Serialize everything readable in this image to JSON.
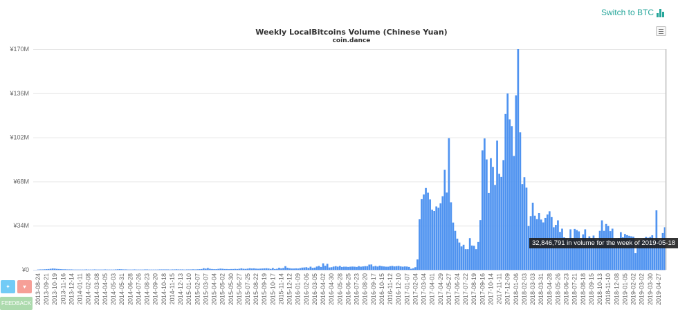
{
  "header": {
    "switch_label": "Switch to BTC",
    "switch_icon": "bar-chart-icon",
    "menu_icon": "hamburger-menu-icon"
  },
  "footer_buttons": {
    "feedback": "FEEDBACK",
    "tweet_icon": "twitter-icon",
    "heart_icon": "heart-icon"
  },
  "tooltip": {
    "text": "32,846,791 in volume for the week of 2019-05-18"
  },
  "colors": {
    "bar": "#4f93f0",
    "accent": "#26a69a",
    "feedback": "#9ed49f",
    "twitter": "#5bc3f5",
    "heart": "#f58f86"
  },
  "chart_data": {
    "type": "bar",
    "title": "Weekly LocalBitcoins Volume (Chinese Yuan)",
    "subtitle": "coin.dance",
    "xlabel": "",
    "ylabel": "",
    "ylim": [
      0,
      170
    ],
    "y_unit": "million CNY",
    "yticks": [
      "¥0",
      "¥34M",
      "¥68M",
      "¥102M",
      "¥136M",
      "¥170M"
    ],
    "grid": true,
    "first_week": "2013-08-24",
    "last_week": "2019-05-18",
    "week_step_days": 7,
    "xtick_labels": [
      "2013-08-24",
      "2013-09-21",
      "2013-10-19",
      "2013-11-16",
      "2013-12-14",
      "2014-01-11",
      "2014-02-08",
      "2014-03-08",
      "2014-04-05",
      "2014-05-03",
      "2014-05-31",
      "2014-06-28",
      "2014-07-26",
      "2014-08-23",
      "2014-09-20",
      "2014-10-18",
      "2014-11-15",
      "2014-12-13",
      "2015-01-10",
      "2015-02-07",
      "2015-03-07",
      "2015-04-04",
      "2015-05-02",
      "2015-05-30",
      "2015-06-27",
      "2015-07-25",
      "2015-08-22",
      "2015-09-19",
      "2015-10-17",
      "2015-11-14",
      "2015-12-12",
      "2016-01-09",
      "2016-02-06",
      "2016-03-05",
      "2016-04-02",
      "2016-04-30",
      "2016-05-28",
      "2016-06-25",
      "2016-07-23",
      "2016-08-20",
      "2016-09-17",
      "2016-10-15",
      "2016-11-12",
      "2016-12-10",
      "2017-01-07",
      "2017-02-04",
      "2017-03-04",
      "2017-04-01",
      "2017-04-29",
      "2017-05-27",
      "2017-06-24",
      "2017-07-22",
      "2017-08-19",
      "2017-09-16",
      "2017-10-14",
      "2017-11-11",
      "2017-12-09",
      "2018-01-06",
      "2018-02-03",
      "2018-03-03",
      "2018-03-31",
      "2018-04-28",
      "2018-05-26",
      "2018-06-23",
      "2018-07-21",
      "2018-08-18",
      "2018-09-15",
      "2018-10-13",
      "2018-11-10",
      "2018-12-08",
      "2019-01-05",
      "2019-02-02",
      "2019-03-02",
      "2019-03-30",
      "2019-04-27"
    ],
    "values": [
      0.2,
      0.3,
      0.3,
      0.4,
      0.5,
      0.6,
      0.8,
      1.0,
      0.9,
      0.7,
      0.6,
      0.5,
      0.4,
      0.4,
      0.3,
      0.3,
      0.3,
      0.2,
      0.2,
      0.2,
      0.2,
      0.2,
      0.2,
      0.3,
      0.2,
      0.2,
      0.2,
      0.3,
      0.2,
      0.2,
      0.2,
      0.2,
      0.3,
      0.2,
      0.2,
      0.2,
      0.2,
      0.3,
      0.4,
      0.5,
      0.4,
      0.3,
      0.3,
      0.2,
      0.2,
      0.2,
      0.3,
      0.2,
      0.2,
      0.2,
      0.2,
      0.3,
      0.3,
      0.2,
      0.2,
      0.2,
      0.2,
      0.2,
      0.3,
      0.3,
      0.3,
      0.3,
      0.3,
      0.2,
      0.3,
      0.3,
      0.4,
      0.3,
      0.3,
      0.3,
      0.2,
      0.3,
      0.3,
      0.3,
      0.4,
      0.3,
      0.4,
      0.5,
      0.6,
      1.2,
      0.9,
      1.4,
      0.8,
      0.6,
      0.5,
      0.5,
      0.7,
      0.9,
      0.8,
      0.6,
      0.6,
      0.5,
      0.6,
      0.6,
      0.7,
      0.6,
      0.8,
      1.1,
      0.8,
      0.7,
      0.9,
      1.2,
      1.0,
      1.1,
      0.9,
      0.8,
      0.9,
      1.0,
      1.1,
      1.2,
      1.0,
      0.7,
      1.4,
      0.6,
      0.8,
      1.6,
      1.1,
      1.4,
      2.8,
      1.6,
      1.2,
      1.0,
      1.0,
      1.1,
      1.0,
      1.3,
      1.7,
      1.8,
      2.0,
      1.5,
      2.4,
      1.5,
      1.7,
      2.5,
      3.0,
      2.2,
      5.0,
      3.1,
      4.6,
      1.8,
      2.0,
      2.5,
      2.8,
      2.4,
      3.0,
      2.2,
      2.4,
      2.4,
      2.2,
      2.4,
      2.5,
      2.4,
      2.2,
      2.8,
      2.4,
      2.6,
      2.8,
      2.8,
      4.0,
      4.1,
      2.6,
      3.0,
      2.5,
      3.2,
      2.8,
      2.6,
      2.4,
      2.4,
      2.8,
      3.0,
      2.6,
      2.8,
      3.0,
      2.6,
      2.4,
      2.6,
      2.5,
      2.2,
      0.8,
      1.2,
      2.0,
      8.0,
      38.9,
      54.4,
      58.0,
      63.0,
      59.4,
      54.2,
      46.3,
      45.3,
      48.8,
      47.8,
      51.2,
      56.7,
      77.0,
      59.5,
      101.4,
      52.0,
      36.4,
      30.0,
      24.0,
      21.0,
      18.0,
      19.3,
      15.9,
      15.9,
      24.4,
      18.7,
      18.5,
      15.9,
      21.4,
      38.3,
      92.0,
      101.2,
      85.0,
      59.2,
      86.0,
      79.3,
      65.4,
      99.5,
      74.0,
      71.5,
      84.5,
      120.0,
      135.8,
      115.9,
      110.7,
      87.7,
      134.4,
      170.0,
      105.9,
      66.0,
      71.3,
      63.3,
      33.7,
      41.4,
      51.7,
      41.7,
      39.0,
      43.7,
      38.7,
      36.5,
      40.0,
      42.6,
      45.1,
      40.6,
      32.8,
      34.6,
      38.1,
      29.2,
      31.7,
      25.0,
      24.0,
      23.0,
      31.2,
      24.0,
      31.5,
      30.6,
      29.6,
      23.0,
      27.3,
      31.2,
      23.0,
      25.8,
      24.0,
      26.4,
      23.0,
      23.0,
      30.0,
      38.1,
      30.0,
      35.3,
      33.7,
      29.8,
      31.7,
      24.0,
      24.0,
      24.5,
      29.0,
      25.0,
      27.6,
      26.7,
      26.2,
      25.8,
      25.5,
      12.8,
      19.6,
      21.5,
      23.0,
      24.0,
      25.3,
      24.7,
      25.3,
      26.6,
      23.0,
      45.8,
      23.0,
      23.0,
      28.3,
      32.8
    ]
  }
}
